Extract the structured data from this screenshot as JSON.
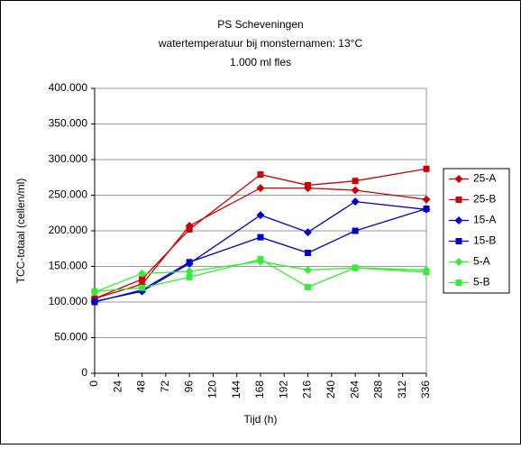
{
  "chart_data": {
    "type": "line",
    "title": "PS Scheveningen",
    "subtitle": [
      "watertemperatuur bij monsternamen: 13°C",
      "1.000 ml fles"
    ],
    "x_label": "Tijd (h)",
    "y_label": "TCC-totaal (cellen/ml)",
    "x": [
      0,
      48,
      96,
      168,
      216,
      264,
      336
    ],
    "xlim": [
      0,
      336
    ],
    "xticks": [
      0,
      24,
      48,
      72,
      96,
      120,
      144,
      168,
      192,
      216,
      240,
      264,
      288,
      312,
      336
    ],
    "ylim": [
      0,
      400000
    ],
    "yticks": [
      0,
      {
        "value": 50000,
        "label": "50.000"
      },
      {
        "value": 100000,
        "label": "100.000"
      },
      {
        "value": 150000,
        "label": "150.000"
      },
      {
        "value": 200000,
        "label": "200.000"
      },
      {
        "value": 250000,
        "label": "250.000"
      },
      {
        "value": 300000,
        "label": "300.000"
      },
      {
        "value": 350000,
        "label": "350.000"
      },
      {
        "value": 400000,
        "label": "400.000"
      }
    ],
    "grid": true,
    "legend": "right",
    "series": [
      {
        "name": "25-A",
        "color": "#cc0000",
        "marker": "diamond",
        "values": [
          105000,
          125000,
          207000,
          260000,
          260000,
          257000,
          244000
        ]
      },
      {
        "name": "25-B",
        "color": "#cc0000",
        "marker": "square",
        "values": [
          105000,
          132000,
          202000,
          279000,
          264000,
          270000,
          287000
        ]
      },
      {
        "name": "15-A",
        "color": "#0000cc",
        "marker": "diamond",
        "values": [
          101000,
          115000,
          154000,
          222000,
          198000,
          241000,
          230000
        ]
      },
      {
        "name": "15-B",
        "color": "#0000cc",
        "marker": "square",
        "values": [
          100000,
          117000,
          156000,
          191000,
          169000,
          200000,
          231000
        ]
      },
      {
        "name": "5-A",
        "color": "#33ee33",
        "marker": "diamond",
        "values": [
          114000,
          140000,
          143000,
          157000,
          145000,
          148000,
          145000
        ]
      },
      {
        "name": "5-B",
        "color": "#33ee33",
        "marker": "square",
        "values": [
          115000,
          120000,
          135000,
          160000,
          121000,
          148000,
          142000
        ]
      }
    ]
  }
}
